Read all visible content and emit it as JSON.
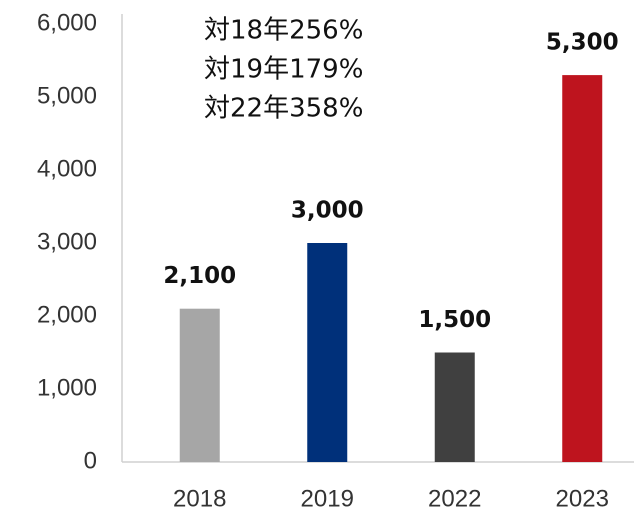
{
  "chart_data": {
    "type": "bar",
    "annotations": [
      "対18年256%",
      "対19年179%",
      "対22年358%"
    ],
    "categories": [
      "2018",
      "2019",
      "2022",
      "2023"
    ],
    "values": [
      2100,
      3000,
      1500,
      5300
    ],
    "value_labels": [
      "2,100",
      "3,000",
      "1,500",
      "5,300"
    ],
    "colors": [
      "#a6a6a6",
      "#00307a",
      "#404040",
      "#be141e"
    ],
    "ylim": [
      0,
      6000
    ],
    "yticks": [
      0,
      {
        "value": 1000,
        "label": "1,000"
      },
      {
        "value": 2000,
        "label": "2,000"
      },
      {
        "value": 3000,
        "label": "3,000"
      },
      {
        "value": 4000,
        "label": "4,000"
      },
      {
        "value": 5000,
        "label": "5,000"
      },
      {
        "value": 6000,
        "label": "6,000"
      }
    ],
    "grid": false
  }
}
